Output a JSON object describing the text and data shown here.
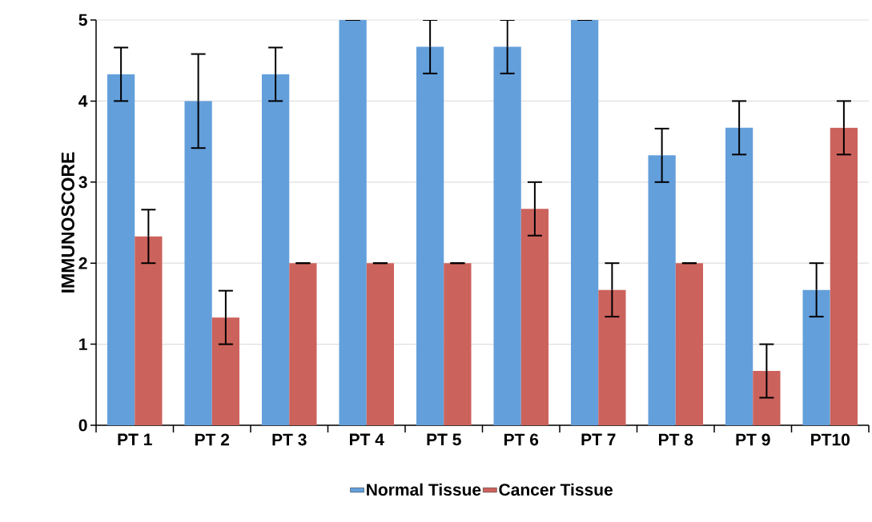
{
  "chart_data": {
    "type": "bar",
    "ylabel": "IMMUNOSCORE",
    "categories": [
      "PT 1",
      "PT 2",
      "PT 3",
      "PT 4",
      "PT 5",
      "PT 6",
      "PT 7",
      "PT 8",
      "PT 9",
      "PT10"
    ],
    "series": [
      {
        "name": "Normal Tissue",
        "color": "#639fdb",
        "values": [
          4.33,
          4.0,
          4.33,
          5.0,
          4.67,
          4.67,
          5.0,
          3.33,
          3.67,
          1.67
        ],
        "errors": [
          0.33,
          0.58,
          0.33,
          0,
          0.33,
          0.33,
          0,
          0.33,
          0.33,
          0.33
        ]
      },
      {
        "name": "Cancer Tissue",
        "color": "#cc625c",
        "values": [
          2.33,
          1.33,
          2.0,
          2.0,
          2.0,
          2.67,
          1.67,
          2.0,
          0.67,
          3.67
        ],
        "errors": [
          0.33,
          0.33,
          0,
          0,
          0,
          0.33,
          0.33,
          0,
          0.33,
          0.33
        ]
      }
    ],
    "ylim": [
      0,
      5
    ],
    "yticks": [
      0,
      1,
      2,
      3,
      4,
      5
    ],
    "grid": "y",
    "legend": "bottom"
  }
}
